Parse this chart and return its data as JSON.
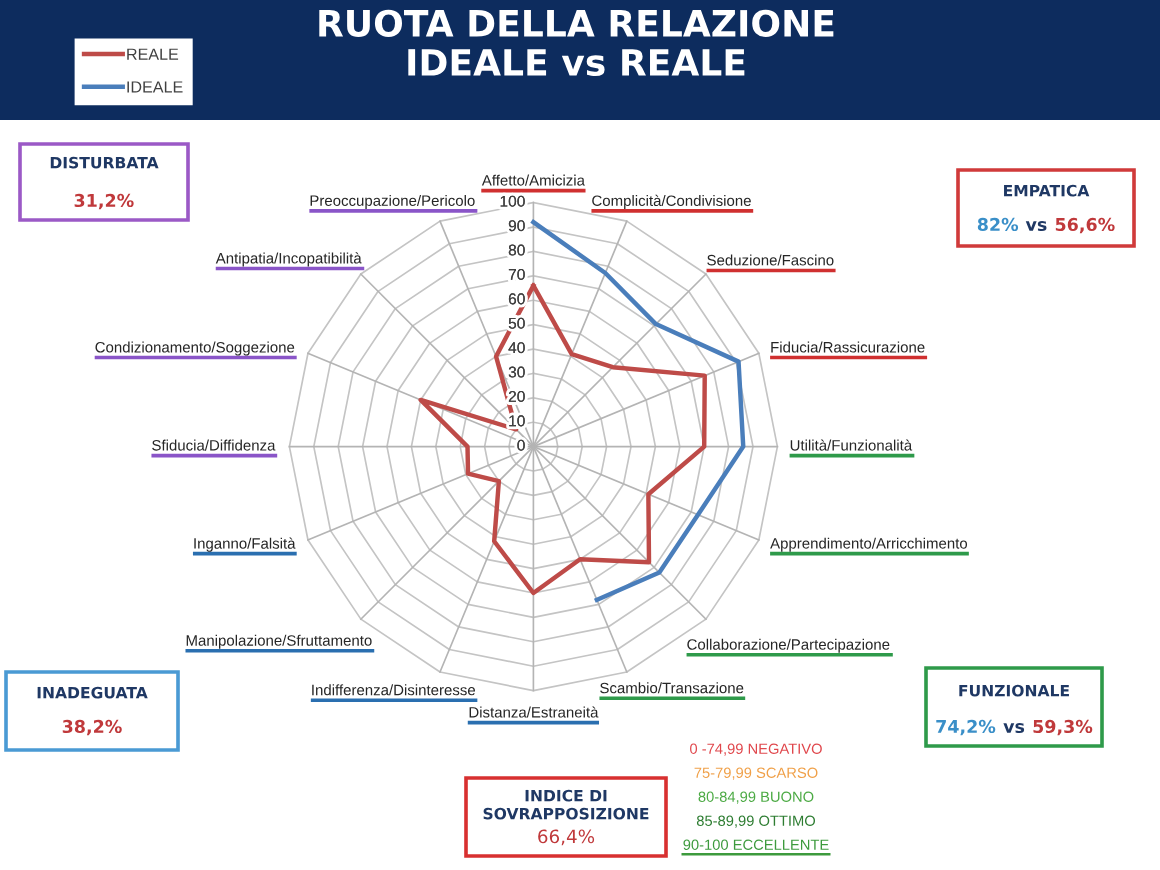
{
  "chart_data": {
    "type": "radar",
    "title": "RUOTA DELLA RELAZIONE\nIDEALE vs REALE",
    "categories": [
      "Affetto/Amicizia",
      "Complicità/Condivisione",
      "Seduzione/Fascino",
      "Fiducia/Rassicurazione",
      "Utilità/Funzionalità",
      "Apprendimento/Arricchimento",
      "Collaborazione/Partecipazione",
      "Scambio/Transazione",
      "Distanza/Estraneità",
      "Indifferenza/Disinteresse",
      "Manipolazione/Sfruttamento",
      "Inganno/Falsità",
      "Sfiducia/Diffidenza",
      "Condizionamento/Soggezione",
      "Antipatia/Incopatibilità",
      "Preoccupazione/Pericolo"
    ],
    "series": [
      {
        "name": "REALE",
        "color": "#be4b48",
        "values": [
          66,
          41,
          46,
          76,
          70,
          51,
          67,
          50,
          60,
          42,
          20,
          29,
          27,
          50,
          10,
          40
        ]
      },
      {
        "name": "IDEALE",
        "color": "#4a7ebb",
        "values": [
          92,
          77,
          71,
          91,
          86,
          73,
          73,
          68,
          null,
          null,
          null,
          null,
          null,
          null,
          null,
          null
        ]
      }
    ],
    "ylim": [
      0,
      100
    ],
    "yticks": [
      0,
      10,
      20,
      30,
      40,
      50,
      60,
      70,
      80,
      90,
      100
    ],
    "grid": true,
    "legend": "top left",
    "annotations": [
      "DISTURBATA",
      "31,2%",
      "EMPATICA",
      "82% vs 56,6%",
      "INADEGUATA",
      "38,2%",
      "FUNZIONALE",
      "74,2% vs 59,3%",
      "INDICE DI SOVRAPPOSIZIONE",
      "66,4%",
      "0 -74,99 NEGATIVO",
      "75-79,99 SCARSO",
      "80-84,99 BUONO",
      "85-89,99 OTTIMO",
      "90-100 ECCELLENTE"
    ]
  }
}
